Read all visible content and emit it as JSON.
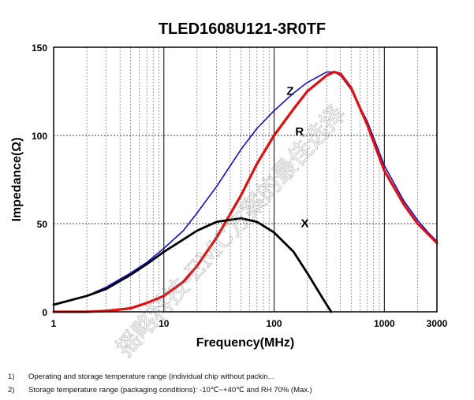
{
  "chart_data": {
    "type": "line",
    "title": "TLED1608U121-3R0TF",
    "xlabel": "Frequency(MHz)",
    "ylabel": "Impedance(Ω)",
    "x_scale": "log",
    "xlim": [
      1,
      3000
    ],
    "ylim": [
      0,
      150
    ],
    "x_ticks": [
      1,
      10,
      100,
      1000,
      3000
    ],
    "x_tick_labels": [
      "1",
      "10",
      "100",
      "1000",
      "3000"
    ],
    "y_ticks": [
      0,
      50,
      100,
      150
    ],
    "y_tick_labels": [
      "0",
      "50",
      "100",
      "150"
    ],
    "grid": true,
    "series": [
      {
        "name": "Z",
        "color": "#1010d0",
        "x": [
          1,
          2,
          3,
          5,
          7,
          10,
          15,
          20,
          30,
          50,
          70,
          100,
          150,
          200,
          300,
          350,
          400,
          500,
          700,
          1000,
          1500,
          2000,
          2500,
          3000
        ],
        "y": [
          4,
          9,
          14,
          22,
          28,
          36,
          46,
          56,
          71,
          92,
          104,
          114,
          124,
          130,
          136,
          136,
          134,
          126,
          108,
          83,
          63,
          52,
          45,
          40
        ]
      },
      {
        "name": "R",
        "color": "#e01010",
        "x": [
          1,
          2,
          3,
          5,
          7,
          10,
          15,
          20,
          30,
          50,
          70,
          100,
          150,
          200,
          300,
          350,
          400,
          500,
          700,
          1000,
          1500,
          2000,
          2500,
          3000
        ],
        "y": [
          0,
          0,
          0.5,
          2,
          5,
          9,
          17,
          26,
          42,
          66,
          84,
          100,
          115,
          125,
          134,
          136,
          135,
          127,
          106,
          80,
          61,
          50,
          44,
          39
        ]
      },
      {
        "name": "X",
        "color": "#000000",
        "x": [
          1,
          2,
          3,
          5,
          7,
          10,
          15,
          20,
          30,
          50,
          70,
          100,
          150,
          200,
          250,
          300,
          330
        ],
        "y": [
          4,
          9,
          13,
          21,
          27,
          34,
          41,
          46,
          51,
          53,
          51,
          45,
          34,
          22,
          12,
          4,
          0
        ]
      }
    ],
    "annotations": [
      "Z",
      "R",
      "X"
    ],
    "watermark": "摇略科技-EMC方案的最佳选择"
  },
  "notes": [
    {
      "num": "1)",
      "text": "Operating and storage temperature range (individual chip without packin..."
    },
    {
      "num": "2)",
      "text": "Storage temperature range (packaging conditions): -10℃~+40℃ and RH 70% (Max.)"
    }
  ]
}
